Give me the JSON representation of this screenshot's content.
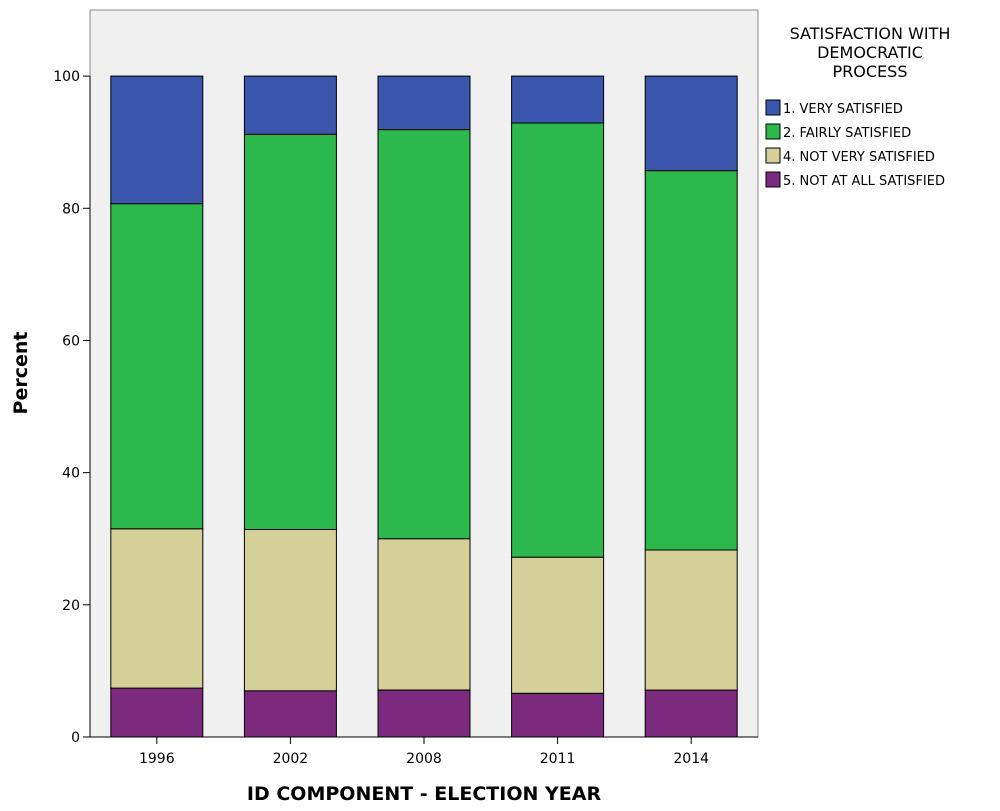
{
  "chart_data": {
    "type": "bar",
    "stacked": true,
    "categories": [
      "1996",
      "2002",
      "2008",
      "2011",
      "2014"
    ],
    "series": [
      {
        "name": "5. NOT AT ALL SATISFIED",
        "color": "#7b2a7e",
        "values": [
          7.4,
          7.0,
          7.1,
          6.6,
          7.1
        ]
      },
      {
        "name": "4. NOT VERY SATISFIED",
        "color": "#d5cf98",
        "values": [
          24.1,
          24.4,
          22.9,
          20.6,
          21.2
        ]
      },
      {
        "name": "2. FAIRLY SATISFIED",
        "color": "#2db84d",
        "values": [
          49.2,
          59.8,
          61.9,
          65.7,
          57.4
        ]
      },
      {
        "name": "1. VERY SATISFIED",
        "color": "#3b57ad",
        "values": [
          19.3,
          8.8,
          8.1,
          7.1,
          14.3
        ]
      }
    ],
    "legend_order": [
      "1. VERY SATISFIED",
      "2. FAIRLY SATISFIED",
      "4. NOT VERY SATISFIED",
      "5. NOT AT ALL SATISFIED"
    ],
    "legend_title": [
      "SATISFACTION WITH",
      "DEMOCRATIC",
      "PROCESS"
    ],
    "legend_position": "right",
    "xlabel": "ID COMPONENT - ELECTION YEAR",
    "ylabel": "Percent",
    "ylim": [
      0,
      110
    ],
    "yticks": [
      0,
      20,
      40,
      60,
      80,
      100
    ],
    "grid": false,
    "plot_background": "#f0f0f0"
  }
}
